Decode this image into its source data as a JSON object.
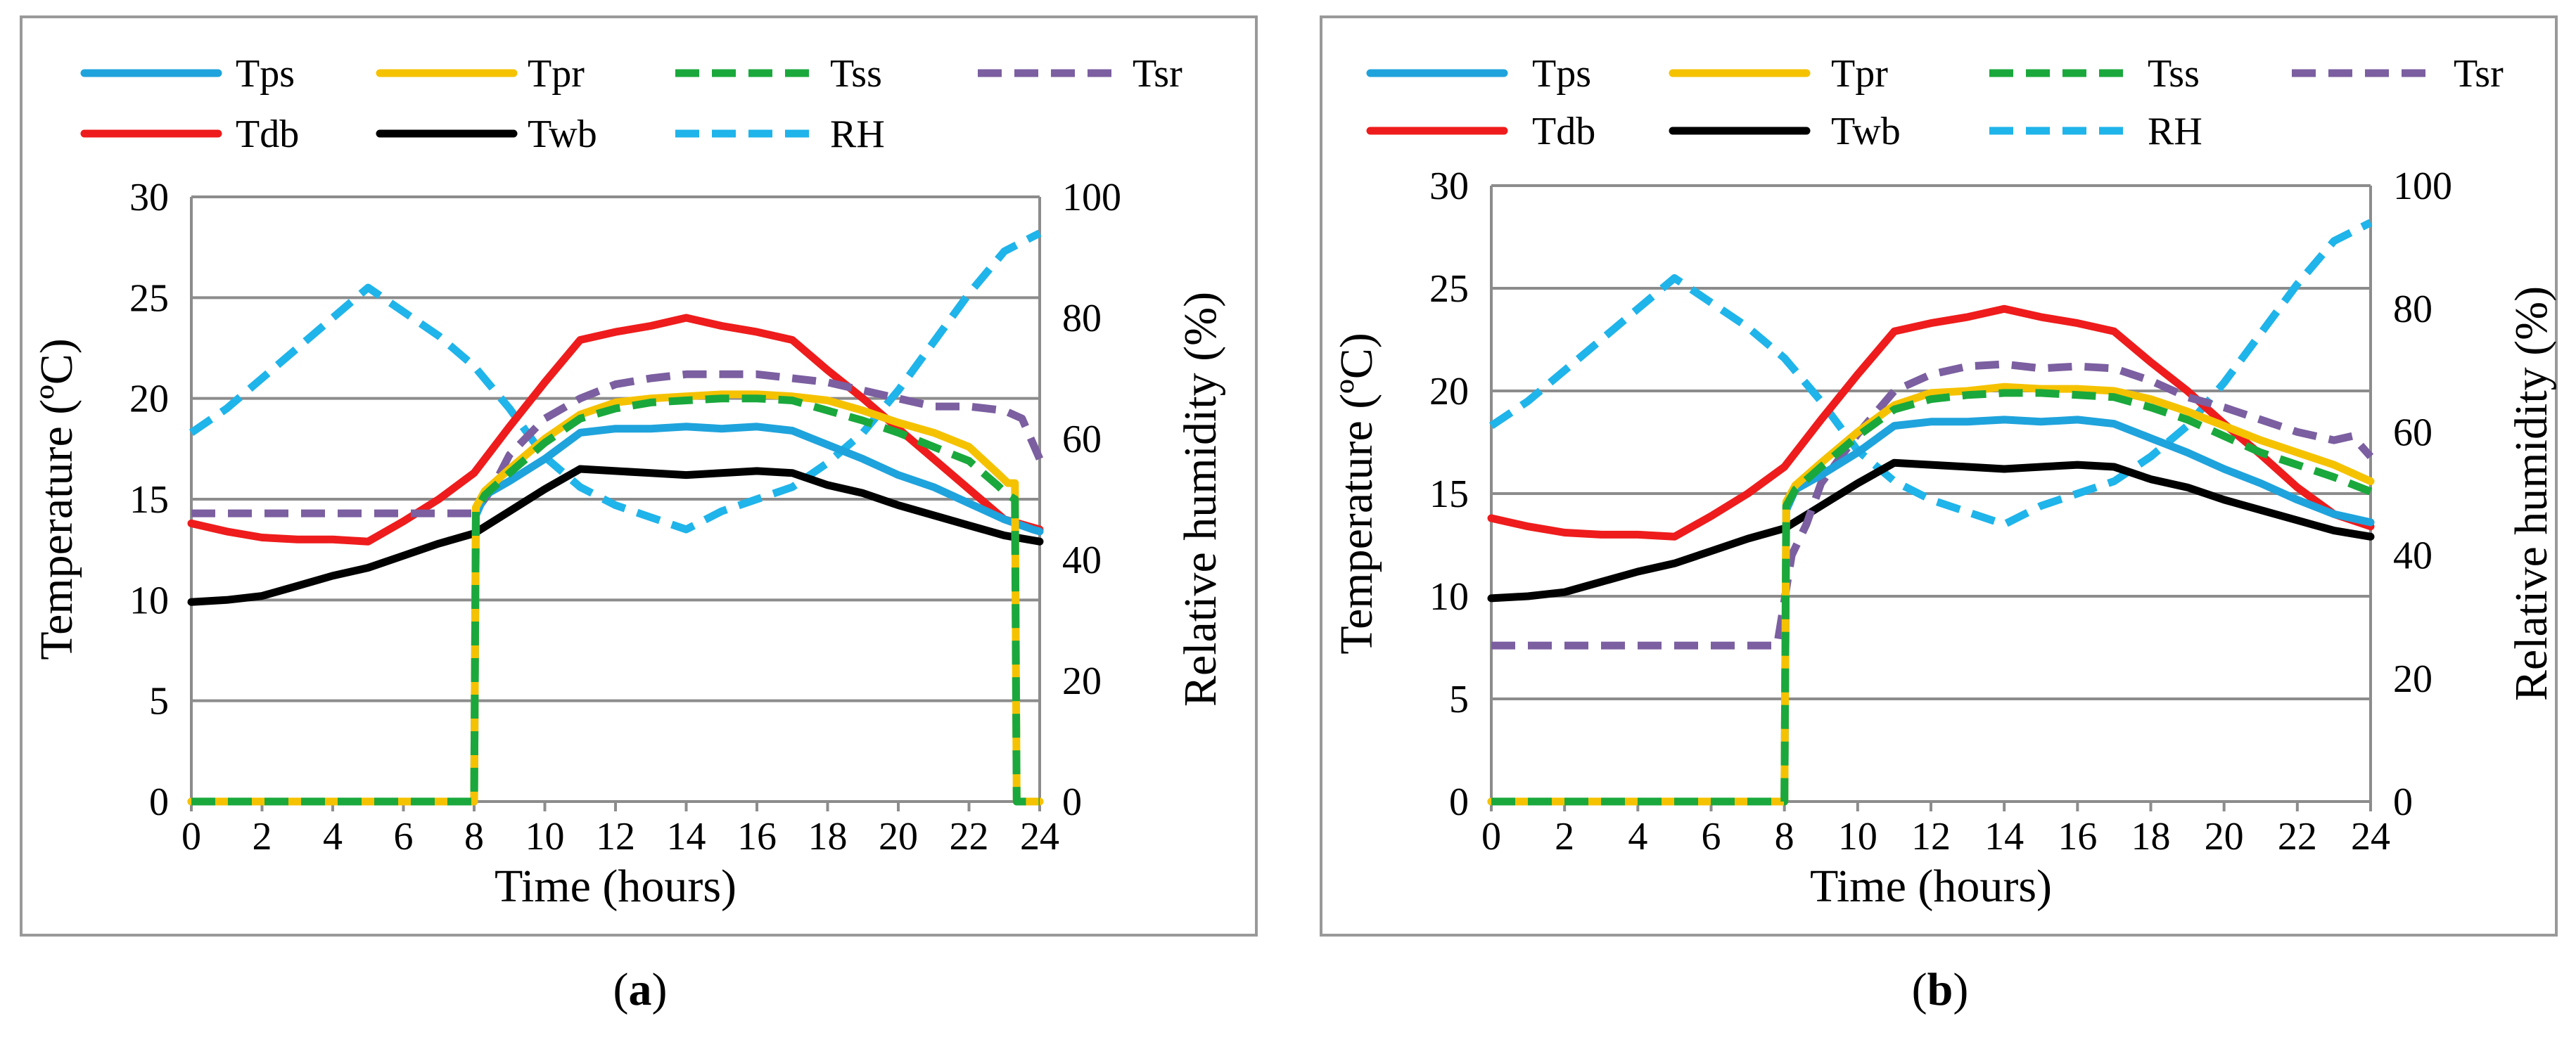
{
  "chart_data": [
    {
      "type": "line",
      "panel": "a",
      "caption_open": "(",
      "caption_letter": "a",
      "caption_close": ")",
      "xlabel": "Time (hours)",
      "ylabel": "Temperature (ºC)",
      "ylabel2": "Relative humidity (%)",
      "xlim": [
        0,
        24
      ],
      "ylim": [
        0,
        30
      ],
      "ylim2": [
        0,
        100
      ],
      "xticks": [
        0,
        2,
        4,
        6,
        8,
        10,
        12,
        14,
        16,
        18,
        20,
        22,
        24
      ],
      "yticks": [
        0,
        5,
        10,
        15,
        20,
        25,
        30
      ],
      "yticks2": [
        0,
        20,
        40,
        60,
        80,
        100
      ],
      "grid": "horizontal",
      "legend": "top",
      "series": [
        {
          "name": "Tps",
          "color": "#1fa3dc",
          "dash": false,
          "axis": "left",
          "x": [
            0,
            8,
            8.05,
            8.3,
            9,
            10,
            11,
            12,
            13,
            14,
            15,
            16,
            17,
            18,
            19,
            20,
            21,
            22,
            23,
            23.8,
            24
          ],
          "y": [
            0,
            0,
            14.2,
            15.2,
            15.9,
            17.0,
            18.3,
            18.5,
            18.5,
            18.6,
            18.5,
            18.6,
            18.4,
            17.7,
            17.0,
            16.2,
            15.6,
            14.8,
            14.0,
            13.5,
            13.4
          ]
        },
        {
          "name": "Tpr",
          "color": "#f5c200",
          "dash": false,
          "axis": "left",
          "x": [
            0,
            8,
            8.05,
            8.3,
            9,
            10,
            11,
            12,
            13,
            14,
            15,
            16,
            17,
            18,
            19,
            20,
            21,
            22,
            22.8,
            23.1,
            23.3,
            23.35,
            24
          ],
          "y": [
            0,
            0,
            14.6,
            15.4,
            16.5,
            18.0,
            19.2,
            19.8,
            20.0,
            20.1,
            20.2,
            20.2,
            20.1,
            19.9,
            19.4,
            18.8,
            18.3,
            17.6,
            16.3,
            15.8,
            15.8,
            0,
            0
          ]
        },
        {
          "name": "Tss",
          "color": "#1aa83c",
          "dash": true,
          "axis": "left",
          "x": [
            0,
            8,
            8.05,
            8.3,
            9,
            10,
            11,
            12,
            13,
            14,
            15,
            16,
            17,
            18,
            19,
            20,
            21,
            22,
            22.8,
            23.1,
            23.3,
            23.35,
            24
          ],
          "y": [
            0,
            0,
            14.4,
            15.2,
            16.3,
            17.8,
            19.0,
            19.5,
            19.8,
            19.9,
            20.0,
            20.0,
            19.9,
            19.4,
            18.9,
            18.3,
            17.6,
            16.9,
            15.7,
            15.2,
            15.0,
            0,
            0
          ]
        },
        {
          "name": "Tsr",
          "color": "#7b5fa0",
          "dash": true,
          "axis": "left",
          "x": [
            0,
            1,
            2,
            3,
            4,
            5,
            6,
            7,
            8,
            8.5,
            9,
            10,
            11,
            12,
            13,
            14,
            15,
            16,
            17,
            18,
            19,
            20,
            21,
            22,
            23,
            23.5,
            24
          ],
          "y": [
            14.3,
            14.3,
            14.3,
            14.3,
            14.3,
            14.3,
            14.3,
            14.3,
            14.3,
            15.5,
            17.2,
            19.0,
            20.0,
            20.7,
            21.0,
            21.2,
            21.2,
            21.2,
            21.0,
            20.8,
            20.4,
            20.0,
            19.6,
            19.6,
            19.4,
            19.0,
            17.0
          ]
        },
        {
          "name": "Tdb",
          "color": "#ee1c1c",
          "dash": false,
          "axis": "left",
          "x": [
            0,
            1,
            2,
            3,
            4,
            5,
            6,
            7,
            8,
            9,
            10,
            11,
            12,
            13,
            14,
            15,
            16,
            17,
            18,
            19,
            20,
            21,
            22,
            23,
            24
          ],
          "y": [
            13.8,
            13.4,
            13.1,
            13.0,
            13.0,
            12.9,
            13.9,
            15.0,
            16.3,
            18.6,
            20.8,
            22.9,
            23.3,
            23.6,
            24.0,
            23.6,
            23.3,
            22.9,
            21.4,
            20.0,
            18.5,
            17.0,
            15.5,
            14.0,
            13.5
          ]
        },
        {
          "name": "Twb",
          "color": "#000000",
          "dash": false,
          "axis": "left",
          "x": [
            0,
            1,
            2,
            3,
            4,
            5,
            6,
            7,
            8,
            9,
            10,
            11,
            12,
            13,
            14,
            15,
            16,
            17,
            18,
            19,
            20,
            21,
            22,
            23,
            24
          ],
          "y": [
            9.9,
            10.0,
            10.2,
            10.7,
            11.2,
            11.6,
            12.2,
            12.8,
            13.3,
            14.4,
            15.5,
            16.5,
            16.4,
            16.3,
            16.2,
            16.3,
            16.4,
            16.3,
            15.7,
            15.3,
            14.7,
            14.2,
            13.7,
            13.2,
            12.9
          ]
        },
        {
          "name": "RH",
          "color": "#1fb4ea",
          "dash": true,
          "axis": "right",
          "x": [
            0,
            1,
            2,
            3,
            4,
            5,
            6,
            7,
            8,
            9,
            10,
            11,
            12,
            13,
            14,
            15,
            16,
            17,
            18,
            19,
            20,
            21,
            22,
            23,
            24
          ],
          "y": [
            61,
            65,
            70,
            75,
            80,
            85,
            81,
            77,
            72,
            65,
            57,
            52,
            49,
            47,
            45,
            48,
            50,
            52,
            56,
            61,
            68,
            76,
            84,
            91,
            94
          ]
        }
      ]
    },
    {
      "type": "line",
      "panel": "b",
      "caption_open": "(",
      "caption_letter": "b",
      "caption_close": ")",
      "xlabel": "Time (hours)",
      "ylabel": "Temperature (ºC)",
      "ylabel2": "Relative humidity (%)",
      "xlim": [
        0,
        24
      ],
      "ylim": [
        0,
        30
      ],
      "ylim2": [
        0,
        100
      ],
      "xticks": [
        0,
        2,
        4,
        6,
        8,
        10,
        12,
        14,
        16,
        18,
        20,
        22,
        24
      ],
      "yticks": [
        0,
        5,
        10,
        15,
        20,
        25,
        30
      ],
      "yticks2": [
        0,
        20,
        40,
        60,
        80,
        100
      ],
      "grid": "horizontal",
      "legend": "top",
      "series": [
        {
          "name": "Tps",
          "color": "#1fa3dc",
          "dash": false,
          "axis": "left",
          "x": [
            0,
            8,
            8.05,
            8.3,
            9,
            10,
            11,
            12,
            13,
            14,
            15,
            16,
            17,
            18,
            19,
            20,
            21,
            22,
            23,
            24
          ],
          "y": [
            0,
            0,
            14.2,
            15.2,
            15.9,
            17.0,
            18.3,
            18.5,
            18.5,
            18.6,
            18.5,
            18.6,
            18.4,
            17.7,
            17.0,
            16.2,
            15.5,
            14.7,
            14.0,
            13.6
          ]
        },
        {
          "name": "Tpr",
          "color": "#f5c200",
          "dash": false,
          "axis": "left",
          "x": [
            0,
            8,
            8.05,
            8.3,
            9,
            10,
            11,
            12,
            13,
            14,
            15,
            16,
            17,
            18,
            19,
            20,
            21,
            22,
            23,
            24
          ],
          "y": [
            0,
            0,
            14.6,
            15.4,
            16.5,
            18.0,
            19.3,
            19.9,
            20.0,
            20.2,
            20.1,
            20.1,
            20.0,
            19.6,
            19.0,
            18.3,
            17.6,
            17.0,
            16.4,
            15.6
          ]
        },
        {
          "name": "Tss",
          "color": "#1aa83c",
          "dash": true,
          "axis": "left",
          "x": [
            0,
            8,
            8.05,
            8.3,
            9,
            10,
            11,
            12,
            13,
            14,
            15,
            16,
            17,
            18,
            19,
            20,
            21,
            22,
            23,
            24
          ],
          "y": [
            0,
            0,
            14.4,
            15.2,
            16.3,
            17.8,
            19.1,
            19.6,
            19.8,
            19.9,
            19.9,
            19.8,
            19.7,
            19.2,
            18.6,
            17.8,
            17.0,
            16.4,
            15.8,
            15.1
          ]
        },
        {
          "name": "Tsr",
          "color": "#7b5fa0",
          "dash": true,
          "axis": "left",
          "x": [
            0,
            1,
            2,
            3,
            4,
            5,
            6,
            7,
            7.8,
            8.2,
            8.6,
            9,
            10,
            11,
            12,
            13,
            14,
            15,
            16,
            17,
            18,
            19,
            20,
            21,
            22,
            23,
            23.5,
            24
          ],
          "y": [
            7.6,
            7.6,
            7.6,
            7.6,
            7.6,
            7.6,
            7.6,
            7.6,
            7.6,
            12.0,
            13.5,
            15.5,
            17.9,
            20.0,
            20.8,
            21.2,
            21.3,
            21.1,
            21.2,
            21.1,
            20.5,
            19.7,
            19.2,
            18.6,
            18.0,
            17.6,
            17.8,
            16.8
          ]
        },
        {
          "name": "Tdb",
          "color": "#ee1c1c",
          "dash": false,
          "axis": "left",
          "x": [
            0,
            1,
            2,
            3,
            4,
            5,
            6,
            7,
            8,
            9,
            10,
            11,
            12,
            13,
            14,
            15,
            16,
            17,
            18,
            19,
            20,
            21,
            22,
            23,
            24
          ],
          "y": [
            13.8,
            13.4,
            13.1,
            13.0,
            13.0,
            12.9,
            13.9,
            15.0,
            16.3,
            18.6,
            20.8,
            22.9,
            23.3,
            23.6,
            24.0,
            23.6,
            23.3,
            22.9,
            21.4,
            20.0,
            18.4,
            16.9,
            15.3,
            14.0,
            13.4
          ]
        },
        {
          "name": "Twb",
          "color": "#000000",
          "dash": false,
          "axis": "left",
          "x": [
            0,
            1,
            2,
            3,
            4,
            5,
            6,
            7,
            8,
            9,
            10,
            11,
            12,
            13,
            14,
            15,
            16,
            17,
            18,
            19,
            20,
            21,
            22,
            23,
            24
          ],
          "y": [
            9.9,
            10.0,
            10.2,
            10.7,
            11.2,
            11.6,
            12.2,
            12.8,
            13.3,
            14.4,
            15.5,
            16.5,
            16.4,
            16.3,
            16.2,
            16.3,
            16.4,
            16.3,
            15.7,
            15.3,
            14.7,
            14.2,
            13.7,
            13.2,
            12.9
          ]
        },
        {
          "name": "RH",
          "color": "#1fb4ea",
          "dash": true,
          "axis": "right",
          "x": [
            0,
            1,
            2,
            3,
            4,
            5,
            6,
            7,
            8,
            9,
            10,
            11,
            12,
            13,
            14,
            15,
            16,
            17,
            18,
            19,
            20,
            21,
            22,
            23,
            24
          ],
          "y": [
            61,
            65,
            70,
            75,
            80,
            85,
            81,
            77,
            72,
            65,
            57,
            52,
            49,
            47,
            45,
            48,
            50,
            52,
            56,
            61,
            68,
            76,
            84,
            91,
            94
          ]
        }
      ]
    }
  ]
}
